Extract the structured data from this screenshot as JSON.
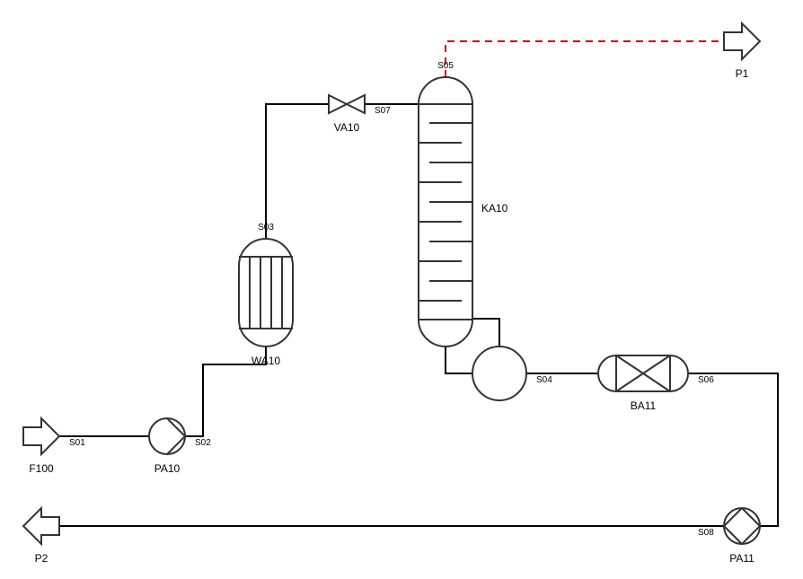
{
  "equipment": {
    "feed": "F100",
    "pump1": "PA10",
    "exchanger": "WA10",
    "valve": "VA10",
    "column": "KA10",
    "vessel": "BA11",
    "pump2": "PA11",
    "product1": "P1",
    "product2": "P2"
  },
  "streams": {
    "s01": "S01",
    "s02": "S02",
    "s03": "S03",
    "s04": "S04",
    "s05": "S05",
    "s06": "S06",
    "s07": "S07",
    "s08": "S08"
  },
  "colors": {
    "line": "#000000",
    "equipment_stroke": "#333333",
    "signal_dashed": "#cc0000"
  }
}
